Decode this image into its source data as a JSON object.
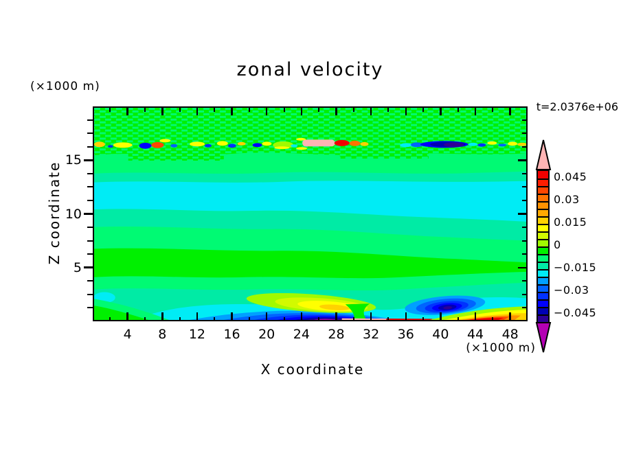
{
  "title": "zonal velocity",
  "annotations": {
    "y_units": "(×1000 m)",
    "x_units": "(×1000 m)",
    "time": "t=2.0376e+06"
  },
  "axes": {
    "x_label": "X coordinate",
    "y_label": "Z coordinate",
    "x_range": [
      0,
      50
    ],
    "y_range": [
      0,
      20
    ],
    "x_major_ticks": [
      4,
      8,
      12,
      16,
      20,
      24,
      28,
      32,
      36,
      40,
      44,
      48
    ],
    "x_minor_step": 2,
    "y_major_ticks": [
      5,
      10,
      15
    ],
    "y_minor_step": 1.25
  },
  "colorbar": {
    "labels": [
      "0.045",
      "0.03",
      "0.015",
      "0",
      "−0.015",
      "−0.03",
      "−0.045"
    ],
    "labeled_values": [
      0.045,
      0.03,
      0.015,
      0,
      -0.015,
      -0.03,
      -0.045
    ],
    "over_arrow_color": "#ffb4b4",
    "under_arrow_color": "#b400b4"
  },
  "chart_data": {
    "type": "heatmap",
    "subtype": "filled_contour",
    "title": "zonal velocity",
    "xlabel": "X coordinate (×1000 m)",
    "ylabel": "Z coordinate (×1000 m)",
    "time_label": "t=2.0376e+06",
    "x_range": [
      0,
      50
    ],
    "y_range": [
      0,
      20
    ],
    "contour_interval": 0.005,
    "levels": [
      -0.05,
      -0.045,
      -0.04,
      -0.035,
      -0.03,
      -0.025,
      -0.02,
      -0.015,
      -0.01,
      -0.005,
      0,
      0.005,
      0.01,
      0.015,
      0.02,
      0.025,
      0.03,
      0.035,
      0.04,
      0.045,
      0.05
    ],
    "palette": {
      "colors": [
        "#2d0096",
        "#0000b4",
        "#0000ff",
        "#0032ff",
        "#0064ff",
        "#00a0ff",
        "#00ecf5",
        "#00eba5",
        "#00fa73",
        "#00f000",
        "#a0fa00",
        "#d2fa00",
        "#ffff00",
        "#ffd200",
        "#ffaa00",
        "#ff9100",
        "#ff7300",
        "#ff4600",
        "#ff1e00",
        "#f00000"
      ],
      "over": "#ffb4b4",
      "under": "#b400b4"
    },
    "features": [
      {
        "name": "speckled near-surface layer",
        "x": [
          0,
          50
        ],
        "z": [
          15,
          20
        ],
        "value": "≈ −0.005…0 (dithered between adjacent levels)"
      },
      {
        "name": "shear band",
        "x": [
          0,
          50
        ],
        "z": [
          16.2,
          17.2
        ],
        "value": "alternating positive/negative patches ±0.01…0.05"
      },
      {
        "name": "strong positive patch in shear band",
        "x": [
          28.5,
          35
        ],
        "z": [
          16.2,
          17
        ],
        "value": "> +0.05 (salmon over-range core)"
      },
      {
        "name": "strong negative patch in shear band",
        "x": [
          40,
          48
        ],
        "z": [
          16.2,
          17
        ],
        "value": "< −0.045 (violet core)"
      },
      {
        "name": "mid-depth negative layer",
        "x": [
          0,
          50
        ],
        "z": [
          8.5,
          13
        ],
        "value": "−0.02…−0.015 (cyan band)"
      },
      {
        "name": "horizontal banding",
        "x": [
          0,
          50
        ],
        "z": [
          4,
          15
        ],
        "value": "layers between −0.02 and 0"
      },
      {
        "name": "bottom positive jet",
        "x": [
          17,
          31
        ],
        "z": [
          0.5,
          2.2
        ],
        "value": "up to +0.02 (gold core)"
      },
      {
        "name": "bottom negative pool",
        "x": [
          12,
          31
        ],
        "z": [
          0,
          1
        ],
        "value": "< −0.05 (magenta under-range core at x≈25–28)"
      },
      {
        "name": "bottom negative eddy",
        "x": [
          36,
          45
        ],
        "z": [
          0.3,
          2.3
        ],
        "value": "< −0.045 (navy core at x≈40–41)"
      },
      {
        "name": "bottom-right positive streak",
        "x": [
          41,
          50
        ],
        "z": [
          0,
          1
        ],
        "value": "up to +0.045 (red at bed)"
      },
      {
        "name": "thin over-range streak at bed",
        "x": [
          28.5,
          34
        ],
        "z": [
          0,
          0.2
        ],
        "value": "> +0.05 (salmon)"
      }
    ]
  }
}
